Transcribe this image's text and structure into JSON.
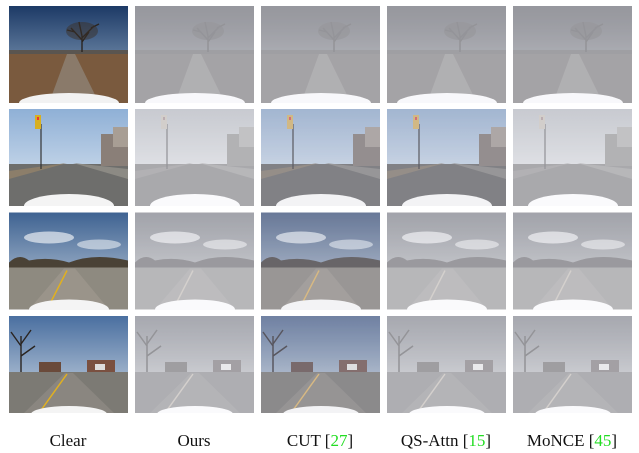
{
  "figure": {
    "columns": [
      {
        "label": [
          "Clear"
        ]
      },
      {
        "label": [
          "Ours"
        ]
      },
      {
        "label": [
          "CUT [",
          "27",
          "]"
        ]
      },
      {
        "label": [
          "QS-Attn [",
          "15",
          "]"
        ]
      },
      {
        "label": [
          "MoNCE [",
          "45",
          "]"
        ]
      }
    ]
  }
}
